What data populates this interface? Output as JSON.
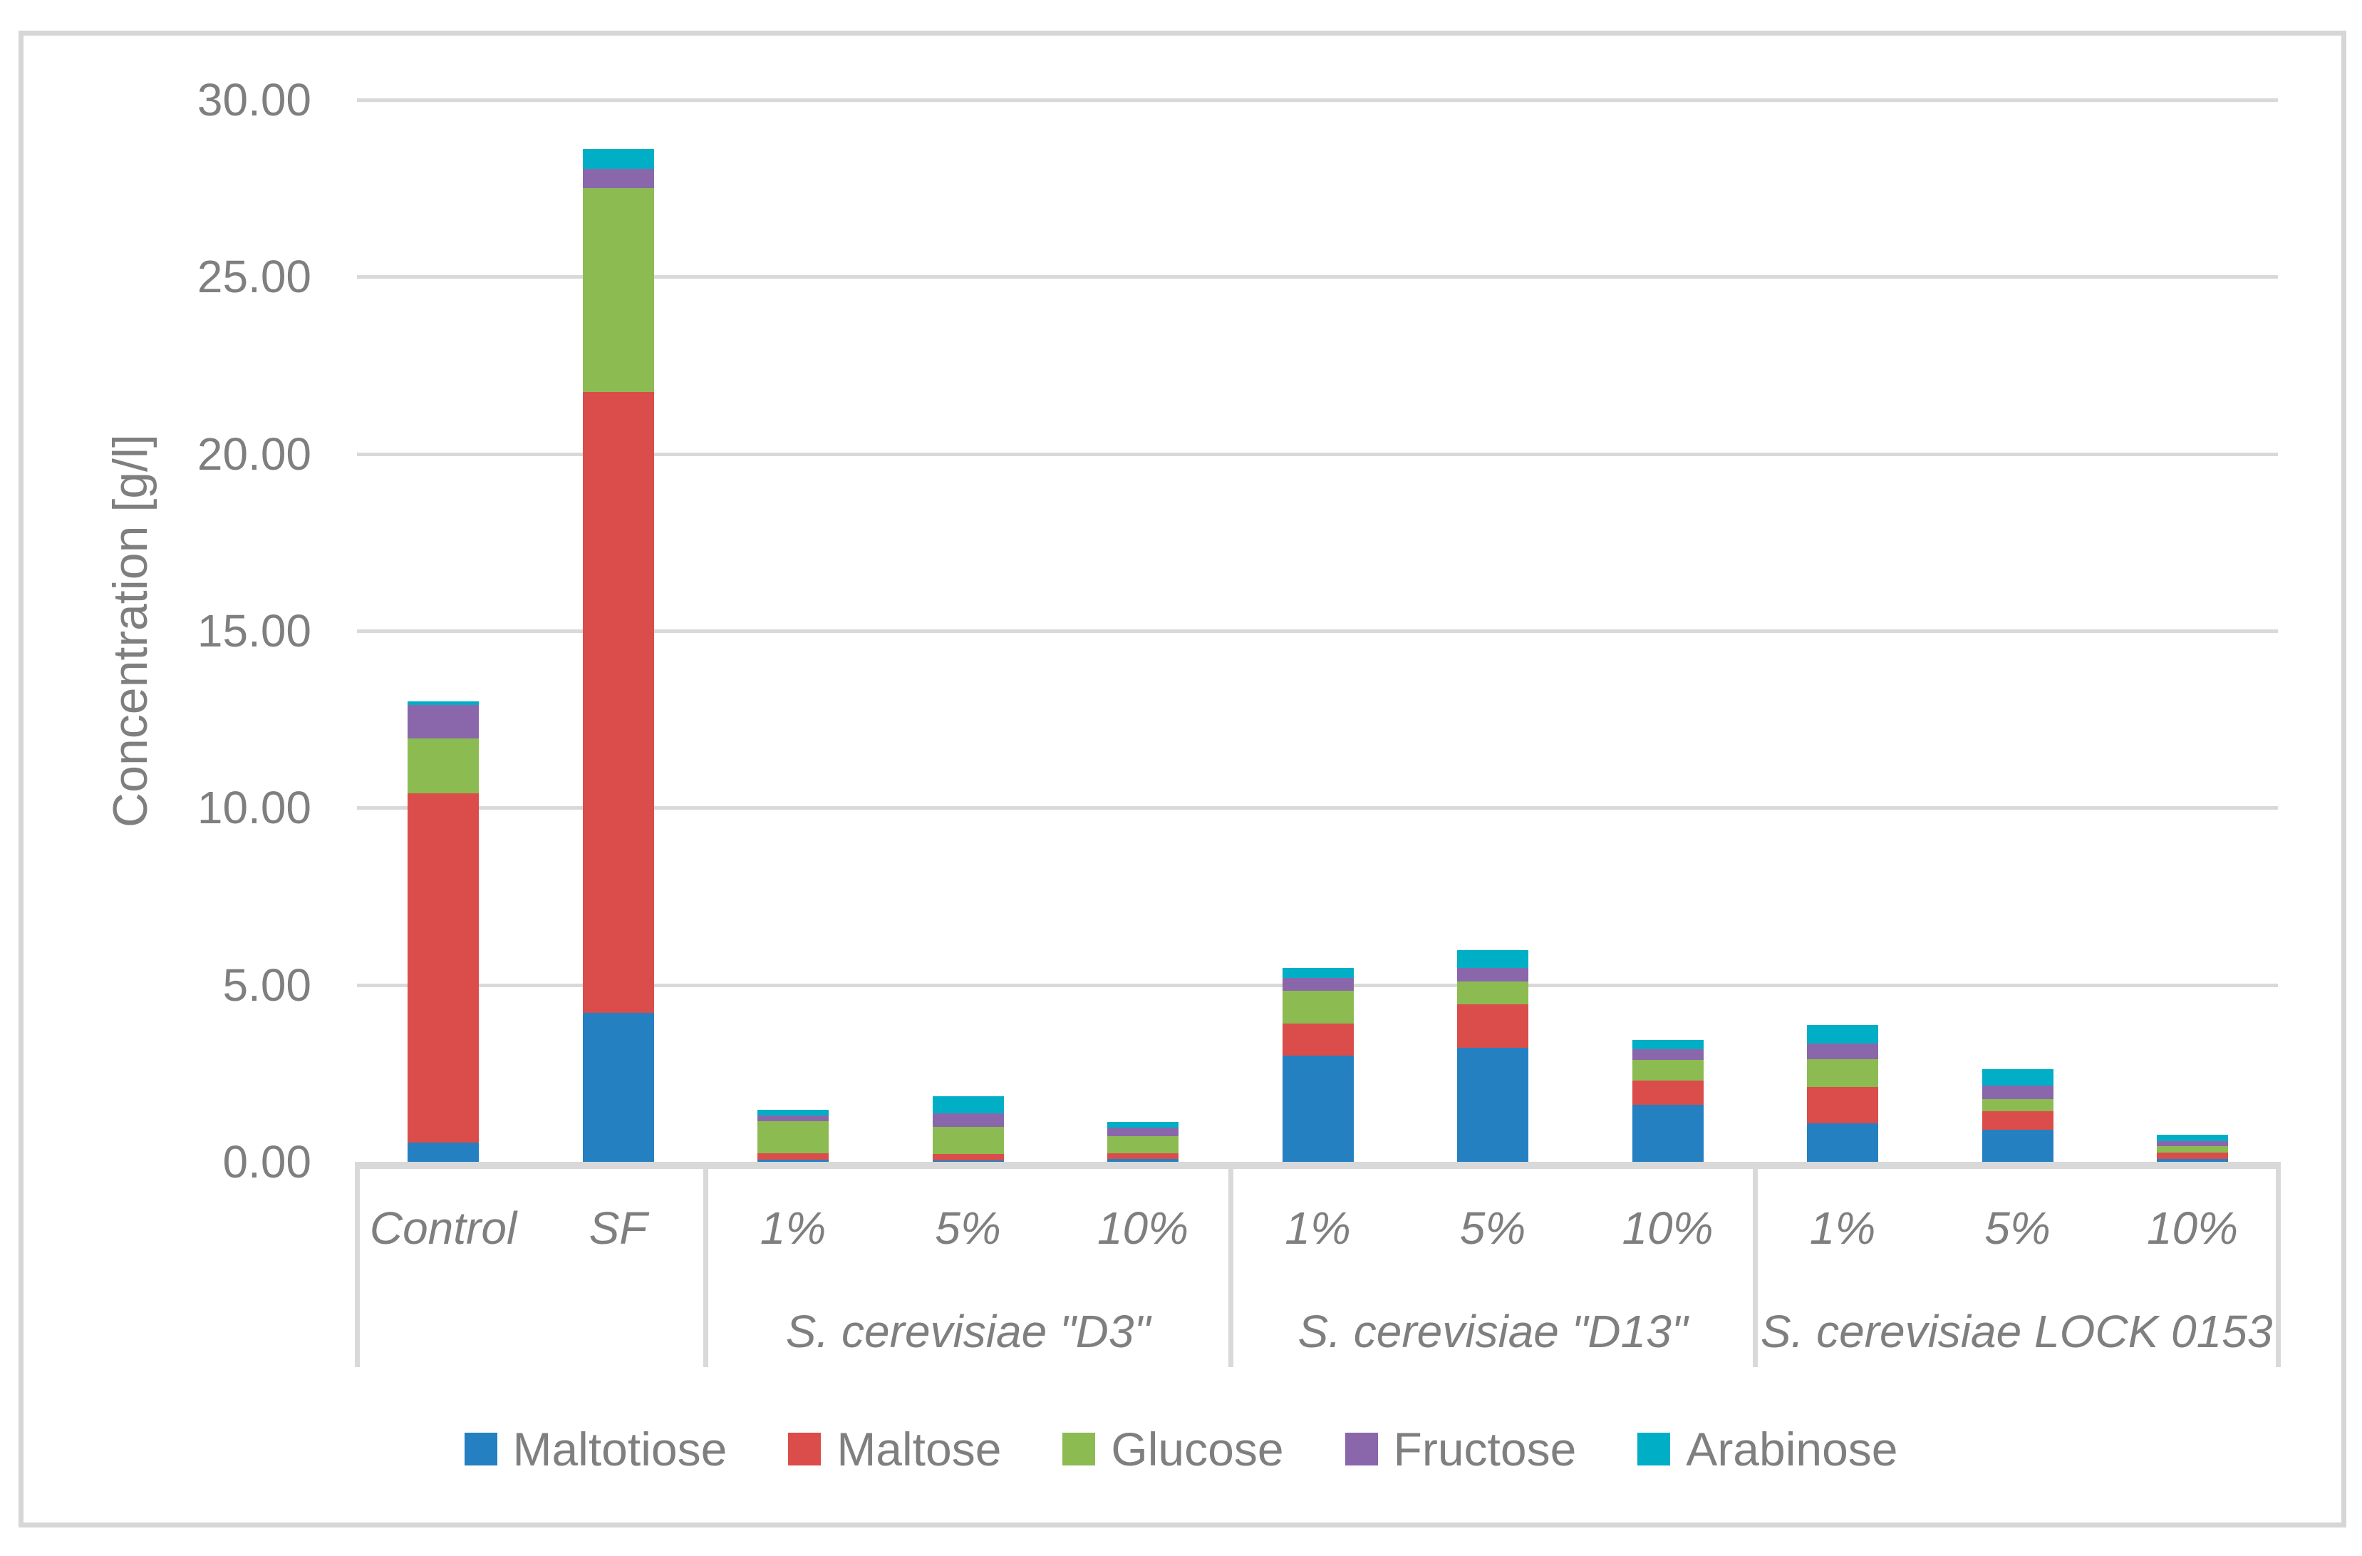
{
  "figure": {
    "kind": "stacked-column-chart",
    "colors": {
      "maltotiose": "#2580C2",
      "maltose": "#DA4D4A",
      "glucose": "#8CBC51",
      "fructose": "#8967AA",
      "arabinose": "#00AEC6",
      "gridline": "#D9D9D9",
      "frame": "#D6D6D6",
      "text": "#7F7F7F"
    }
  },
  "chart_data": {
    "type": "bar",
    "stacked": true,
    "title": "",
    "xlabel": "",
    "ylabel": "Concentration [g/l]",
    "ylim": [
      0,
      30
    ],
    "ytick_step": 5,
    "ytick_labels": [
      "0.00",
      "5.00",
      "10.00",
      "15.00",
      "20.00",
      "25.00",
      "30.00"
    ],
    "grid": true,
    "legend_position": "bottom",
    "categories": [
      "Control",
      "SF",
      "1%",
      "5%",
      "10%",
      "1%",
      "5%",
      "10%",
      "1%",
      "5%",
      "10%"
    ],
    "groups": [
      {
        "label": "",
        "first": 0,
        "last": 1
      },
      {
        "label": "S. cerevisiae \"D3\"",
        "first": 2,
        "last": 4
      },
      {
        "label": "S. cerevisiae \"D13\"",
        "first": 5,
        "last": 7
      },
      {
        "label": "S. cerevisiae LOCK 0153",
        "first": 8,
        "last": 10
      }
    ],
    "series": [
      {
        "name": "Maltotiose",
        "color": "#2580C2",
        "values": [
          0.55,
          4.2,
          0.07,
          0.05,
          0.08,
          3.0,
          3.23,
          1.62,
          1.08,
          0.9,
          0.09
        ]
      },
      {
        "name": "Maltose",
        "color": "#DA4D4A",
        "values": [
          9.85,
          17.55,
          0.17,
          0.17,
          0.17,
          0.9,
          1.21,
          0.67,
          1.04,
          0.53,
          0.18
        ]
      },
      {
        "name": "Glucose",
        "color": "#8CBC51",
        "values": [
          1.55,
          5.75,
          0.9,
          0.77,
          0.47,
          0.94,
          0.66,
          0.59,
          0.77,
          0.35,
          0.17
        ]
      },
      {
        "name": "Fructose",
        "color": "#8967AA",
        "values": [
          0.95,
          0.55,
          0.17,
          0.38,
          0.25,
          0.36,
          0.38,
          0.3,
          0.46,
          0.37,
          0.15
        ]
      },
      {
        "name": "Arabinose",
        "color": "#00AEC6",
        "values": [
          0.1,
          0.55,
          0.15,
          0.48,
          0.15,
          0.27,
          0.5,
          0.27,
          0.51,
          0.47,
          0.17
        ]
      }
    ]
  }
}
